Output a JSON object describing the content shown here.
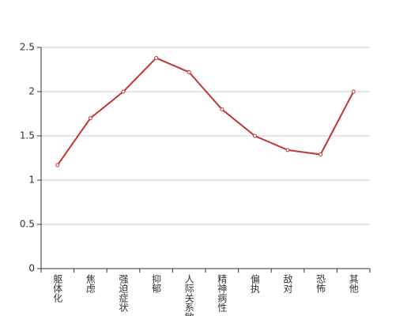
{
  "chart_data": {
    "type": "line",
    "categories": [
      "躯体化",
      "焦虑",
      "强迫症状",
      "抑郁",
      "人际关系敏感",
      "精神病性",
      "偏执",
      "敌对",
      "恐怖",
      "其他"
    ],
    "values": [
      1.17,
      1.7,
      2.0,
      2.38,
      2.22,
      1.8,
      1.5,
      1.34,
      1.29,
      2.0
    ],
    "color": "#c23531",
    "ylim": [
      0,
      2.5
    ],
    "yticks": [
      0,
      0.5,
      1,
      1.5,
      2,
      2.5
    ],
    "grid": true
  }
}
